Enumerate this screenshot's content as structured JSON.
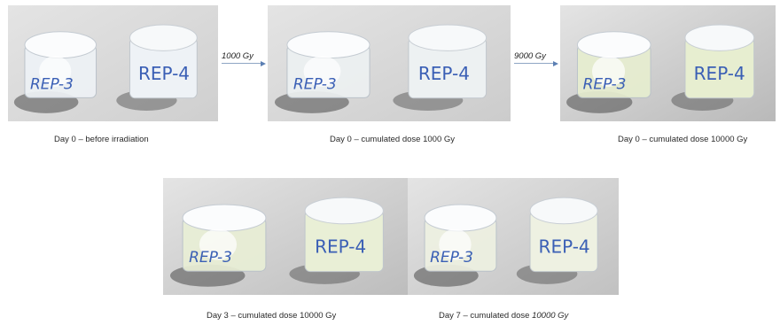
{
  "panels": [
    {
      "sample_left": "REP-3",
      "sample_right": "REP-4",
      "tint": "#eef2f6",
      "bg": "#cfcfcf"
    },
    {
      "sample_left": "REP-3",
      "sample_right": "REP-4",
      "tint": "#edf1f2",
      "bg": "#cccccc"
    },
    {
      "sample_left": "REP-3",
      "sample_right": "REP-4",
      "tint": "#e7eed0",
      "bg": "#b9b9b9"
    },
    {
      "sample_left": "REP-3",
      "sample_right": "REP-4",
      "tint": "#e9efd6",
      "bg": "#bdbdbd"
    },
    {
      "sample_left": "REP-3",
      "sample_right": "REP-4",
      "tint": "#eef1e2",
      "bg": "#c1c1c1"
    }
  ],
  "arrows": [
    {
      "label": "1000 Gy"
    },
    {
      "label": "9000 Gy"
    }
  ],
  "captions": {
    "panel1": "Day 0 – before irradiation",
    "panel2": "Day 0 – cumulated dose 1000 Gy",
    "panel3": "Day 0 – cumulated dose 10000 Gy",
    "panel4": "Day 3 – cumulated dose 10000 Gy",
    "panel5_prefix": "Day 7 – cumulated dose ",
    "panel5_dose": "10000 Gy"
  },
  "colors": {
    "ink": "#3a5fb5",
    "arrow": "#5b7fb3"
  }
}
